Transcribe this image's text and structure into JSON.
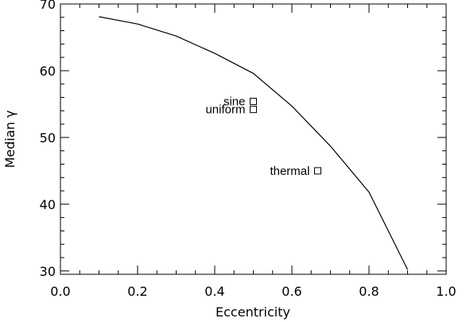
{
  "chart_data": {
    "type": "line",
    "xlabel": "Eccentricity",
    "ylabel": "Median γ",
    "xlim": [
      0.0,
      1.0
    ],
    "ylim": [
      29.5,
      70
    ],
    "x_ticks": [
      "0.0",
      "0.2",
      "0.4",
      "0.6",
      "0.8",
      "1.0"
    ],
    "y_ticks": [
      "30",
      "40",
      "50",
      "60",
      "70"
    ],
    "series": [
      {
        "x": [
          0.1,
          0.2,
          0.3,
          0.4,
          0.5,
          0.6,
          0.7,
          0.8,
          0.9
        ],
        "y": [
          68.1,
          67.0,
          65.2,
          62.6,
          59.6,
          54.7,
          48.7,
          41.8,
          30.2
        ]
      }
    ],
    "points": [
      {
        "label": "sine",
        "x": 0.5,
        "y": 55.4
      },
      {
        "label": "uniform",
        "x": 0.5,
        "y": 54.2
      },
      {
        "label": "thermal",
        "x": 0.667,
        "y": 45.0
      }
    ]
  }
}
